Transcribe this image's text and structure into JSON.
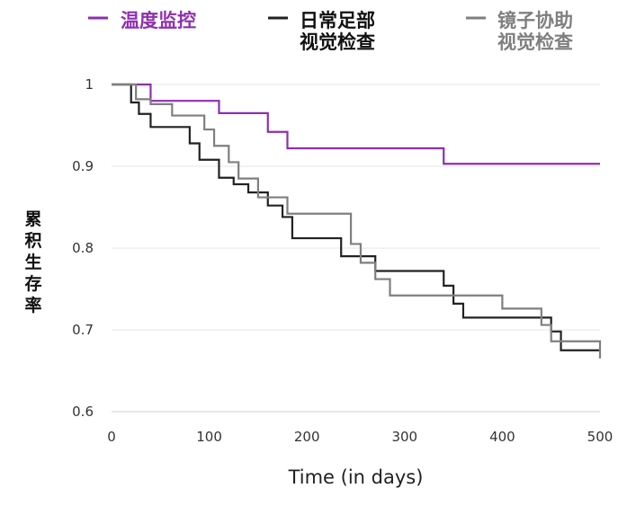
{
  "chart_data": {
    "type": "line",
    "step": true,
    "title": "",
    "xlabel": "Time (in days)",
    "ylabel": "累积生存率",
    "xlim": [
      0,
      500
    ],
    "ylim": [
      0.6,
      1.0
    ],
    "x_ticks": [
      "0",
      "100",
      "200",
      "300",
      "400",
      "500"
    ],
    "y_ticks": [
      "1",
      "0.9",
      "0.8",
      "0.7",
      "0.6"
    ],
    "grid": "horizontal",
    "legend_position": "top",
    "series": [
      {
        "name": "温度监控",
        "color": "#8e2fb0",
        "x": [
          0,
          40,
          110,
          160,
          180,
          340,
          500
        ],
        "y": [
          1.0,
          0.98,
          0.965,
          0.942,
          0.922,
          0.903,
          0.903
        ]
      },
      {
        "name": "日常足部视觉检查",
        "color": "#222222",
        "x": [
          0,
          20,
          28,
          40,
          80,
          90,
          110,
          125,
          140,
          160,
          175,
          185,
          235,
          270,
          340,
          350,
          360,
          450,
          460,
          500
        ],
        "y": [
          1.0,
          0.978,
          0.964,
          0.948,
          0.928,
          0.908,
          0.886,
          0.878,
          0.868,
          0.852,
          0.838,
          0.812,
          0.79,
          0.772,
          0.754,
          0.732,
          0.715,
          0.698,
          0.675,
          0.675
        ]
      },
      {
        "name": "镜子协助视觉检查",
        "color": "#7f7f7f",
        "x": [
          0,
          25,
          40,
          62,
          95,
          105,
          120,
          130,
          150,
          180,
          245,
          255,
          270,
          285,
          400,
          440,
          450,
          500
        ],
        "y": [
          1.0,
          0.982,
          0.976,
          0.962,
          0.945,
          0.925,
          0.905,
          0.885,
          0.862,
          0.842,
          0.805,
          0.782,
          0.762,
          0.742,
          0.726,
          0.706,
          0.686,
          0.665
        ]
      }
    ]
  }
}
